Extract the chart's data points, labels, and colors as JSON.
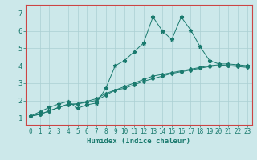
{
  "title": "",
  "xlabel": "Humidex (Indice chaleur)",
  "ylabel": "",
  "bg_color": "#cce8ea",
  "grid_color": "#aacfd2",
  "line_color": "#1a7a6e",
  "border_color": "#cc4444",
  "xlim": [
    -0.5,
    23.5
  ],
  "ylim": [
    0.6,
    7.5
  ],
  "xticks": [
    0,
    1,
    2,
    3,
    4,
    5,
    6,
    7,
    8,
    9,
    10,
    11,
    12,
    13,
    14,
    15,
    16,
    17,
    18,
    19,
    20,
    21,
    22,
    23
  ],
  "yticks": [
    1,
    2,
    3,
    4,
    5,
    6,
    7
  ],
  "series1_x": [
    0,
    1,
    2,
    3,
    4,
    5,
    6,
    7,
    8,
    9,
    10,
    11,
    12,
    13,
    14,
    15,
    16,
    17,
    18,
    19,
    20,
    21,
    22,
    23
  ],
  "series1_y": [
    1.1,
    1.35,
    1.6,
    1.8,
    1.95,
    1.55,
    1.75,
    1.85,
    2.7,
    4.0,
    4.3,
    4.8,
    5.3,
    6.8,
    6.0,
    5.5,
    6.8,
    6.05,
    5.1,
    4.3,
    4.1,
    4.1,
    4.05,
    4.0
  ],
  "series2_x": [
    0,
    1,
    2,
    3,
    4,
    5,
    6,
    7,
    8,
    9,
    10,
    11,
    12,
    13,
    14,
    15,
    16,
    17,
    18,
    19,
    20,
    21,
    22,
    23
  ],
  "series2_y": [
    1.1,
    1.2,
    1.4,
    1.6,
    1.8,
    1.8,
    1.95,
    2.1,
    2.4,
    2.6,
    2.8,
    3.0,
    3.2,
    3.4,
    3.5,
    3.6,
    3.7,
    3.8,
    3.9,
    4.0,
    4.05,
    4.0,
    4.0,
    3.95
  ],
  "series3_x": [
    0,
    1,
    2,
    3,
    4,
    5,
    6,
    7,
    8,
    9,
    10,
    11,
    12,
    13,
    14,
    15,
    16,
    17,
    18,
    19,
    20,
    21,
    22,
    23
  ],
  "series3_y": [
    1.1,
    1.2,
    1.4,
    1.6,
    1.75,
    1.8,
    1.9,
    2.0,
    2.3,
    2.6,
    2.7,
    2.9,
    3.1,
    3.25,
    3.4,
    3.55,
    3.65,
    3.75,
    3.85,
    3.95,
    4.0,
    4.0,
    3.95,
    3.9
  ],
  "tick_fontsize": 5.5,
  "xlabel_fontsize": 6.5,
  "marker1": "*",
  "marker2": "D",
  "marker3": "D",
  "markersize1": 3.5,
  "markersize2": 2.0,
  "markersize3": 2.0,
  "linewidth": 0.7
}
